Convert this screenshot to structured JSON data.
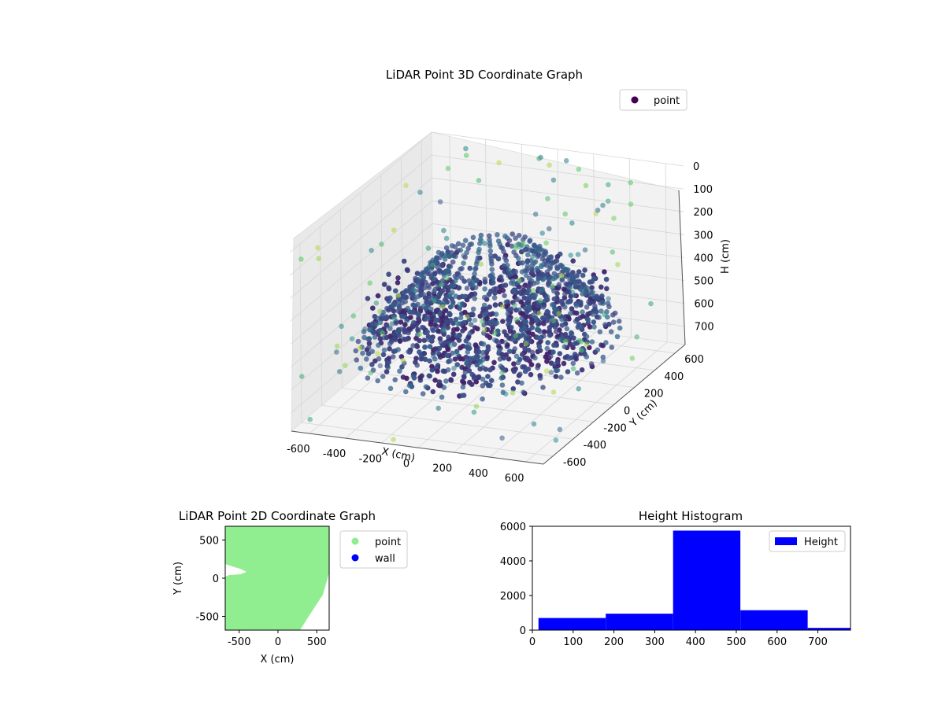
{
  "chart_data": [
    {
      "type": "scatter",
      "title": "LiDAR Point 3D Coordinate Graph",
      "xlabel": "X (cm)",
      "ylabel": "Y (cm)",
      "zlabel": "H (cm)",
      "x_ticks": [
        -600,
        -400,
        -200,
        0,
        200,
        400,
        600
      ],
      "y_ticks": [
        -600,
        -400,
        -200,
        0,
        200,
        400,
        600
      ],
      "z_ticks": [
        0,
        100,
        200,
        300,
        400,
        500,
        600,
        700
      ],
      "xlim": [
        -700,
        700
      ],
      "ylim": [
        -700,
        700
      ],
      "zlim": [
        0,
        780
      ],
      "z_inverted": true,
      "colormap": [
        "#440154",
        "#3b528b",
        "#21918c",
        "#5ec962",
        "#fde725"
      ],
      "grid": true,
      "legend": [
        "point"
      ],
      "legend_position": "upper right",
      "series": [
        {
          "name": "point",
          "color": "#440154"
        }
      ]
    },
    {
      "type": "scatter",
      "title": "LiDAR Point 2D Coordinate Graph",
      "xlabel": "X (cm)",
      "ylabel": "Y (cm)",
      "xlim": [
        -680,
        660
      ],
      "ylim": [
        -680,
        680
      ],
      "x_ticks": [
        -500,
        0,
        500
      ],
      "y_ticks": [
        500,
        0,
        -500
      ],
      "legend_position": "outside right",
      "series": [
        {
          "name": "point",
          "color": "#90ee90"
        },
        {
          "name": "wall",
          "color": "#0000ff"
        }
      ]
    },
    {
      "type": "bar",
      "title": "Height Histogram",
      "xlabel": "",
      "ylabel": "",
      "xlim": [
        0,
        780
      ],
      "ylim": [
        0,
        6000
      ],
      "x_ticks": [
        0,
        100,
        200,
        300,
        400,
        500,
        600,
        700
      ],
      "y_ticks": [
        0,
        2000,
        4000,
        6000
      ],
      "legend_position": "upper right",
      "series": [
        {
          "name": "Height",
          "color": "#0000ff",
          "bins": [
            {
              "from": 15,
              "to": 180,
              "count": 700
            },
            {
              "from": 180,
              "to": 345,
              "count": 950
            },
            {
              "from": 345,
              "to": 510,
              "count": 5750
            },
            {
              "from": 510,
              "to": 675,
              "count": 1150
            },
            {
              "from": 675,
              "to": 780,
              "count": 130
            }
          ]
        }
      ]
    }
  ]
}
